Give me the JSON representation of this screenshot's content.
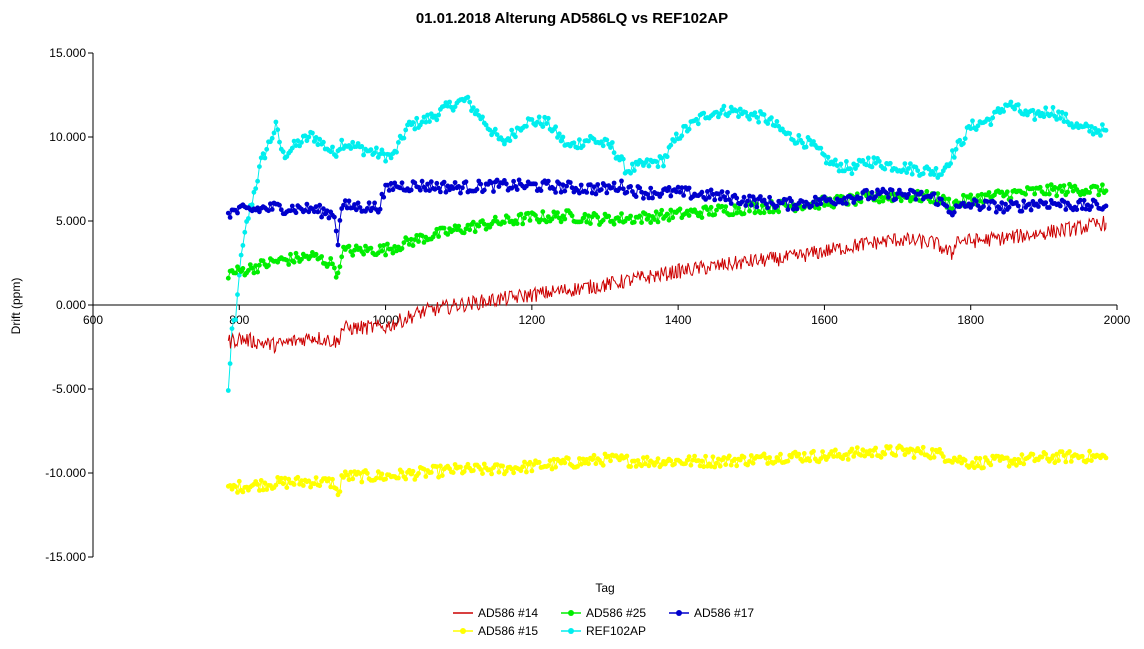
{
  "chart_data": {
    "type": "line",
    "title": "01.01.2018 Alterung AD586LQ vs REF102AP",
    "xlabel": "Tag",
    "ylabel": "Drift (ppm)",
    "xlim": [
      600,
      2000
    ],
    "ylim": [
      -15,
      15
    ],
    "x_ticks": [
      600,
      800,
      1000,
      1200,
      1400,
      1600,
      1800,
      2000
    ],
    "x_tick_labels": [
      "600",
      "800",
      "1000",
      "1200",
      "1400",
      "1600",
      "1800",
      "2000"
    ],
    "y_ticks": [
      15,
      10,
      5,
      0,
      -5,
      -10,
      -15
    ],
    "y_tick_labels": [
      "15.000",
      "10.000",
      "5.000",
      "0.000",
      "-5.000",
      "-10.000",
      "-15.000"
    ],
    "grid": false,
    "legend_position": "bottom-center",
    "series": [
      {
        "name": "AD586 #14",
        "color": "#cc0000",
        "marker": "none",
        "x": [
          785,
          800,
          850,
          900,
          935,
          940,
          1000,
          1050,
          1100,
          1150,
          1200,
          1250,
          1300,
          1350,
          1400,
          1450,
          1500,
          1550,
          1600,
          1650,
          1700,
          1750,
          1775,
          1780,
          1800,
          1850,
          1900,
          1950,
          1985
        ],
        "y": [
          -2.2,
          -2.0,
          -2.4,
          -1.9,
          -2.2,
          -1.4,
          -1.3,
          -0.4,
          0.0,
          0.3,
          0.6,
          0.9,
          1.2,
          1.6,
          2.0,
          2.3,
          2.6,
          2.8,
          3.2,
          3.6,
          3.9,
          3.7,
          3.0,
          3.9,
          3.8,
          4.0,
          4.3,
          4.6,
          4.9
        ]
      },
      {
        "name": "AD586 #25",
        "color": "#00ee00",
        "marker": "circle",
        "x": [
          785,
          800,
          850,
          900,
          930,
          935,
          940,
          1000,
          1050,
          1100,
          1150,
          1200,
          1250,
          1300,
          1350,
          1400,
          1450,
          1500,
          1550,
          1600,
          1650,
          1700,
          1750,
          1775,
          1800,
          1850,
          1900,
          1950,
          1985
        ],
        "y": [
          1.9,
          2.0,
          2.6,
          2.9,
          2.4,
          1.6,
          3.2,
          3.3,
          4.0,
          4.5,
          4.9,
          5.2,
          5.3,
          5.1,
          5.2,
          5.4,
          5.6,
          5.8,
          5.9,
          6.1,
          6.3,
          6.5,
          6.4,
          6.0,
          6.3,
          6.6,
          6.8,
          6.9,
          6.8
        ]
      },
      {
        "name": "AD586 #17",
        "color": "#0000cc",
        "marker": "circle",
        "x": [
          785,
          800,
          850,
          900,
          930,
          935,
          940,
          990,
          1000,
          1010,
          1050,
          1100,
          1150,
          1200,
          1250,
          1300,
          1320,
          1350,
          1400,
          1450,
          1500,
          1550,
          1600,
          1650,
          1700,
          1750,
          1775,
          1800,
          1850,
          1900,
          1950,
          1985
        ],
        "y": [
          5.5,
          5.6,
          5.8,
          5.7,
          5.4,
          3.8,
          5.9,
          5.8,
          6.8,
          7.1,
          7.1,
          7.0,
          7.1,
          7.1,
          7.0,
          6.9,
          7.1,
          6.7,
          6.7,
          6.5,
          6.2,
          6.0,
          6.2,
          6.5,
          6.6,
          6.4,
          5.6,
          6.0,
          5.8,
          6.1,
          5.9,
          5.9
        ]
      },
      {
        "name": "AD586 #15",
        "color": "#ffff00",
        "marker": "circle",
        "x": [
          785,
          800,
          850,
          900,
          930,
          935,
          940,
          1000,
          1050,
          1100,
          1150,
          1200,
          1250,
          1300,
          1350,
          1400,
          1450,
          1500,
          1550,
          1600,
          1650,
          1700,
          1750,
          1800,
          1850,
          1900,
          1950,
          1985
        ],
        "y": [
          -11.0,
          -10.8,
          -10.6,
          -10.5,
          -10.6,
          -11.5,
          -10.2,
          -10.2,
          -10.0,
          -9.8,
          -9.8,
          -9.6,
          -9.4,
          -9.2,
          -9.3,
          -9.3,
          -9.3,
          -9.2,
          -9.0,
          -9.0,
          -8.8,
          -8.7,
          -8.8,
          -9.4,
          -9.3,
          -9.1,
          -9.0,
          -9.1
        ]
      },
      {
        "name": "REF102AP",
        "color": "#00eeee",
        "marker": "circle",
        "x": [
          785,
          790,
          795,
          800,
          810,
          830,
          850,
          860,
          880,
          900,
          930,
          940,
          960,
          990,
          1010,
          1030,
          1060,
          1090,
          1110,
          1130,
          1160,
          1190,
          1220,
          1250,
          1280,
          1310,
          1330,
          1350,
          1380,
          1400,
          1440,
          1470,
          1500,
          1520,
          1550,
          1580,
          1610,
          1640,
          1660,
          1680,
          1720,
          1760,
          1800,
          1830,
          1850,
          1880,
          1910,
          1950,
          1985
        ],
        "y": [
          -5.2,
          -1.5,
          -1.0,
          2.0,
          4.8,
          8.5,
          10.6,
          8.9,
          9.6,
          10.1,
          9.0,
          9.7,
          9.4,
          9.0,
          8.8,
          10.6,
          11.1,
          11.9,
          12.2,
          11.2,
          9.6,
          10.9,
          10.9,
          9.4,
          9.9,
          9.4,
          8.0,
          8.3,
          8.6,
          10.1,
          11.4,
          11.6,
          11.3,
          11.1,
          10.1,
          9.6,
          8.4,
          8.1,
          8.6,
          8.4,
          8.1,
          7.9,
          10.6,
          11.1,
          12.0,
          11.2,
          11.6,
          10.5,
          10.4
        ]
      }
    ]
  }
}
